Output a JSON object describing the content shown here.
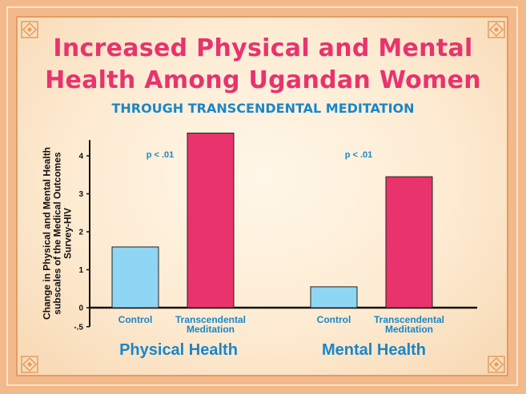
{
  "title_line1": "Increased Physical and Mental",
  "title_line2": "Health Among Ugandan Women",
  "subtitle": "THROUGH TRANSCENDENTAL MEDITATION",
  "colors": {
    "control": "#8fd6f4",
    "tm": "#e8336d",
    "accent_blue": "#1a86c8"
  },
  "chart_data": {
    "type": "bar",
    "title": "Increased Physical and Mental Health Among Ugandan Women",
    "subtitle": "THROUGH TRANSCENDENTAL MEDITATION",
    "ylabel": "Change in Physical and Mental Health subscales of the Medical Outcomes Survey-HIV",
    "ylim": [
      -0.5,
      4.5
    ],
    "yticks": [
      "4",
      "3",
      "2",
      "1",
      "0",
      "-.5"
    ],
    "ytick_values": [
      4,
      3,
      2,
      1,
      0,
      -0.5
    ],
    "groups": [
      {
        "name": "Physical Health",
        "significance": "p < .01",
        "bars": [
          {
            "label": "Control",
            "label_lines": [
              "Control"
            ],
            "value": 1.6,
            "color": "#8fd6f4"
          },
          {
            "label": "Transcendental Meditation",
            "label_lines": [
              "Transcendental",
              "Meditation"
            ],
            "value": 4.6,
            "color": "#e8336d"
          }
        ]
      },
      {
        "name": "Mental Health",
        "significance": "p < .01",
        "bars": [
          {
            "label": "Control",
            "label_lines": [
              "Control"
            ],
            "value": 0.55,
            "color": "#8fd6f4"
          },
          {
            "label": "Transcendental Meditation",
            "label_lines": [
              "Transcendental",
              "Meditation"
            ],
            "value": 3.45,
            "color": "#e8336d"
          }
        ]
      }
    ],
    "grid": false,
    "legend": "none"
  }
}
